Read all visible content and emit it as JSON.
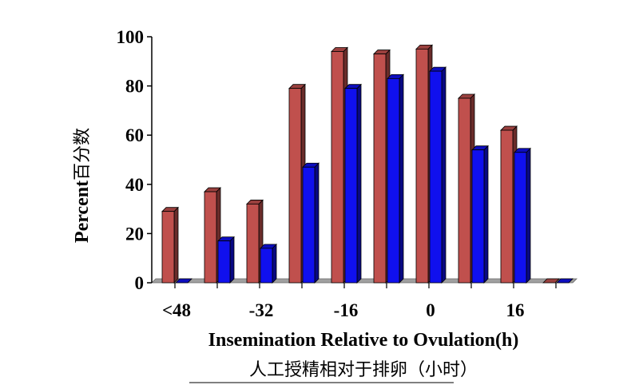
{
  "chart_data": {
    "type": "bar",
    "categories": [
      "<48",
      "",
      "-32",
      "",
      "-16",
      "",
      "0",
      "",
      "16",
      ""
    ],
    "series": [
      {
        "values": [
          29,
          37,
          32,
          79,
          94,
          93,
          95,
          75,
          62,
          0
        ],
        "color": "#c0504d"
      },
      {
        "values": [
          0,
          17,
          14,
          47,
          79,
          83,
          86,
          54,
          53,
          0
        ],
        "color": "#1010ee"
      }
    ],
    "ylabel": "Percent",
    "ylabel_cn": "百分数",
    "xlabel": "Insemination Relative to Ovulation(h)",
    "xlabel_cn": "人工授精相对于排卵（小时）",
    "ylim": [
      0,
      100
    ],
    "yticks": [
      0,
      20,
      40,
      60,
      80,
      100
    ],
    "grid": false,
    "legend": "none"
  }
}
